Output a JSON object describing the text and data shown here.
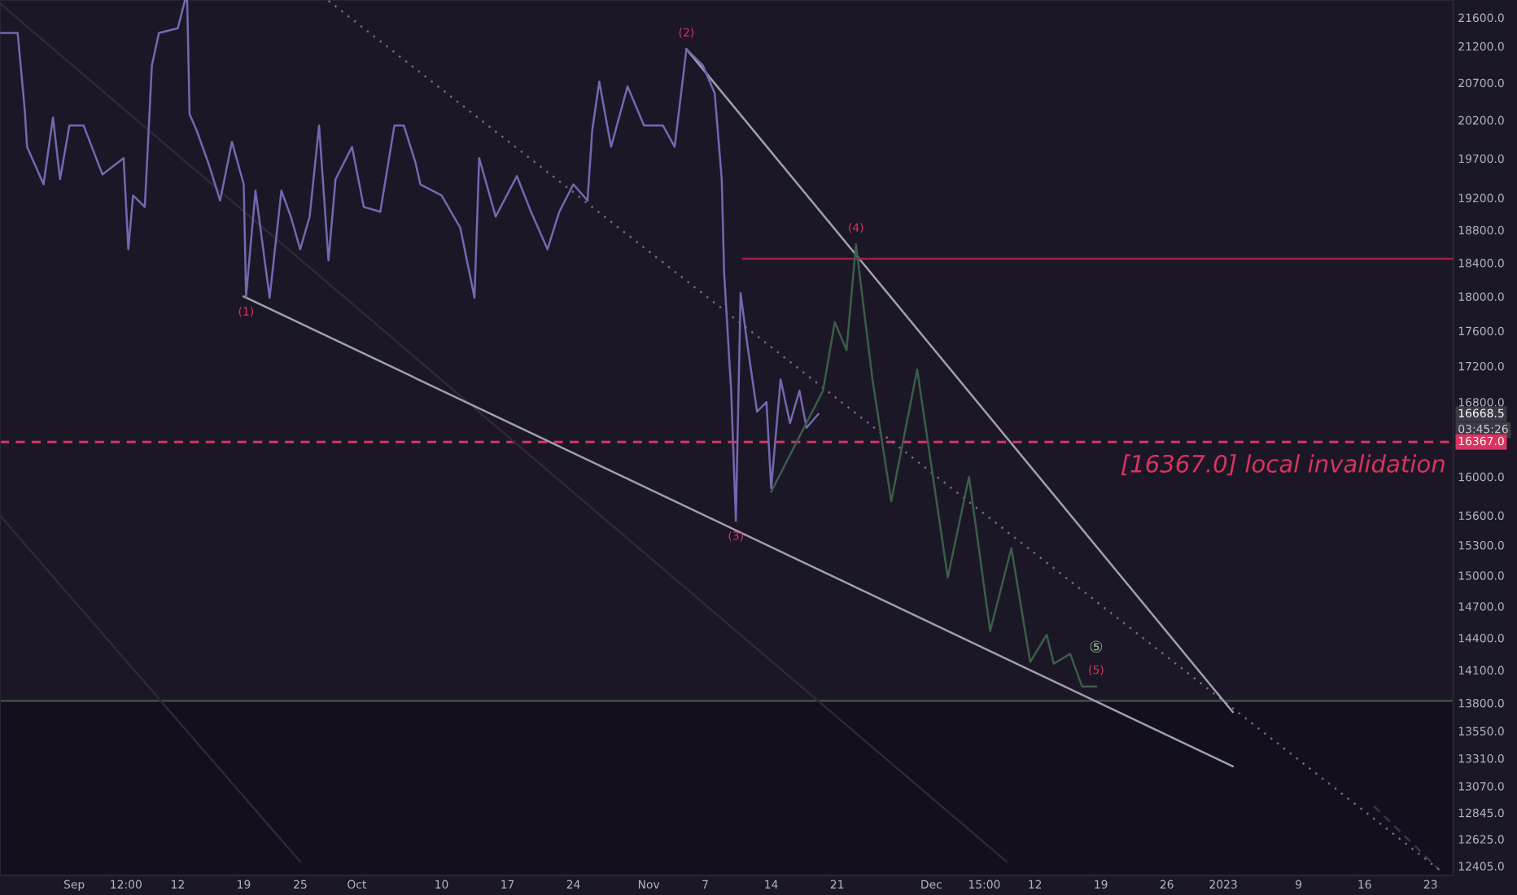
{
  "chart_data": {
    "type": "line",
    "xlim": [
      "2022-08-24T03:00",
      "2023-01-25T10:00"
    ],
    "ylim": [
      12330,
      21850
    ],
    "log": true,
    "grid": false,
    "xticks": [
      {
        "value": "2022-09-01",
        "label": "Sep"
      },
      {
        "value": "2022-09-06T12:00",
        "label": "12:00"
      },
      {
        "value": "2022-09-12",
        "label": "12"
      },
      {
        "value": "2022-09-19",
        "label": "19"
      },
      {
        "value": "2022-09-25",
        "label": "25"
      },
      {
        "value": "2022-10-01",
        "label": "Oct"
      },
      {
        "value": "2022-10-10",
        "label": "10"
      },
      {
        "value": "2022-10-17",
        "label": "17"
      },
      {
        "value": "2022-10-24",
        "label": "24"
      },
      {
        "value": "2022-11-01",
        "label": "Nov"
      },
      {
        "value": "2022-11-07",
        "label": "7"
      },
      {
        "value": "2022-11-14",
        "label": "14"
      },
      {
        "value": "2022-11-21",
        "label": "21"
      },
      {
        "value": "2022-12-01",
        "label": "Dec"
      },
      {
        "value": "2022-12-06T15:00",
        "label": "15:00"
      },
      {
        "value": "2022-12-12",
        "label": "12"
      },
      {
        "value": "2022-12-19",
        "label": "19"
      },
      {
        "value": "2022-12-26",
        "label": "26"
      },
      {
        "value": "2023-01-01",
        "label": "2023"
      },
      {
        "value": "2023-01-09",
        "label": "9"
      },
      {
        "value": "2023-01-16",
        "label": "16"
      },
      {
        "value": "2023-01-23",
        "label": "23"
      }
    ],
    "yticks": [
      {
        "value": 21600,
        "label": "21600.0"
      },
      {
        "value": 21200,
        "label": "21200.0"
      },
      {
        "value": 20700,
        "label": "20700.0"
      },
      {
        "value": 20200,
        "label": "20200.0"
      },
      {
        "value": 19700,
        "label": "19700.0"
      },
      {
        "value": 19200,
        "label": "19200.0"
      },
      {
        "value": 18800,
        "label": "18800.0"
      },
      {
        "value": 18400,
        "label": "18400.0"
      },
      {
        "value": 18000,
        "label": "18000.0"
      },
      {
        "value": 17600,
        "label": "17600.0"
      },
      {
        "value": 17200,
        "label": "17200.0"
      },
      {
        "value": 16800,
        "label": "16800.0"
      },
      {
        "value": 16000,
        "label": "16000.0"
      },
      {
        "value": 15600,
        "label": "15600.0"
      },
      {
        "value": 15300,
        "label": "15300.0"
      },
      {
        "value": 15000,
        "label": "15000.0"
      },
      {
        "value": 14700,
        "label": "14700.0"
      },
      {
        "value": 14400,
        "label": "14400.0"
      },
      {
        "value": 14100,
        "label": "14100.0"
      },
      {
        "value": 13800,
        "label": "13800.0"
      },
      {
        "value": 13550,
        "label": "13550.0"
      },
      {
        "value": 13310,
        "label": "13310.0"
      },
      {
        "value": 13070,
        "label": "13070.0"
      },
      {
        "value": 12845,
        "label": "12845.0"
      },
      {
        "value": 12625,
        "label": "12625.0"
      },
      {
        "value": 12405,
        "label": "12405.0"
      }
    ],
    "bands": [
      {
        "axis": "y",
        "from": 12330,
        "to": 13820,
        "color": "#140f1c"
      }
    ],
    "ref_lines": [
      {
        "axis": "y",
        "value": 13820,
        "color": "#3c4a44",
        "line_style": "solid"
      },
      {
        "axis": "y",
        "value": 16367,
        "label": "[16367.0] local invalidation",
        "color": "#d8345f",
        "line_style": "dashed"
      }
    ],
    "series": [
      {
        "color": "#2e2838",
        "line_style": "solid",
        "x": [
          "2022-08-24T03:00",
          "2022-12-09"
        ],
        "values": [
          21800,
          12440
        ]
      },
      {
        "color": "#2e2838",
        "line_style": "solid",
        "x": [
          "2022-08-24T03:00",
          "2022-09-25"
        ],
        "values": [
          15600,
          12440
        ]
      },
      {
        "color": "#3a3448",
        "line_style": "dashed",
        "x": [
          "2023-01-17",
          "2023-01-24"
        ],
        "values": [
          12900,
          12370
        ]
      },
      {
        "color": "#6e6a82",
        "line_style": "dotted",
        "x": [
          "2022-09-28",
          "2023-01-24"
        ],
        "values": [
          21840,
          12370
        ]
      },
      {
        "color": "#a09eb0",
        "line_style": "solid",
        "x": [
          "2022-09-19",
          "2023-01-02"
        ],
        "values": [
          18000,
          13240
        ]
      },
      {
        "color": "#a09eb0",
        "line_style": "solid",
        "x": [
          "2022-11-05",
          "2023-01-02"
        ],
        "values": [
          21160,
          13720
        ]
      },
      {
        "color": "#9c1f4a",
        "line_style": "solid",
        "x": [
          "2022-11-11",
          "2023-01-25T10:00"
        ],
        "values": [
          18450,
          18450
        ]
      },
      {
        "color": "#7468b0",
        "line_style": "solid",
        "x": [
          "2022-08-24T06:00",
          "2022-08-26",
          "2022-08-26T18:00",
          "2022-08-27",
          "2022-08-28T18:00",
          "2022-08-29T18:00",
          "2022-08-30T12:00",
          "2022-08-31T12:00",
          "2022-09-02",
          "2022-09-04",
          "2022-09-06T06:00",
          "2022-09-06T18:00",
          "2022-09-07T06:00",
          "2022-09-08T12:00",
          "2022-09-09T06:00",
          "2022-09-10",
          "2022-09-12",
          "2022-09-12T18:00",
          "2022-09-13",
          "2022-09-13T06:00",
          "2022-09-14",
          "2022-09-15T06:00",
          "2022-09-16T12:00",
          "2022-09-17T18:00",
          "2022-09-19",
          "2022-09-19T06:00",
          "2022-09-20T06:00",
          "2022-09-21T18:00",
          "2022-09-23",
          "2022-09-24",
          "2022-09-25",
          "2022-09-26",
          "2022-09-27",
          "2022-09-28",
          "2022-09-28T18:00",
          "2022-09-30T12:00",
          "2022-10-01T18:00",
          "2022-10-03T12:00",
          "2022-10-05",
          "2022-10-06",
          "2022-10-07T06:00",
          "2022-10-07T18:00",
          "2022-10-10",
          "2022-10-12",
          "2022-10-13T12:00",
          "2022-10-14",
          "2022-10-15T18:00",
          "2022-10-18",
          "2022-10-19T12:00",
          "2022-10-21T06:00",
          "2022-10-22T12:00",
          "2022-10-24",
          "2022-10-25T12:00",
          "2022-10-26",
          "2022-10-26T18:00",
          "2022-10-28",
          "2022-10-29T18:00",
          "2022-10-31T12:00",
          "2022-11-02T12:00",
          "2022-11-03T18:00",
          "2022-11-05",
          "2022-11-06T18:00",
          "2022-11-08",
          "2022-11-08T18:00",
          "2022-11-09",
          "2022-11-09T18:00",
          "2022-11-10T06:00",
          "2022-11-10T18:00",
          "2022-11-11T12:00",
          "2022-11-12T12:00",
          "2022-11-13T12:00",
          "2022-11-14",
          "2022-11-15",
          "2022-11-16",
          "2022-11-17",
          "2022-11-17T18:00",
          "2022-11-19"
        ],
        "values": [
          21385,
          21385,
          20340,
          19850,
          19370,
          20235,
          19435,
          20130,
          20130,
          19495,
          19705,
          18565,
          19230,
          19085,
          20935,
          21385,
          21450,
          21840,
          21840,
          20280,
          20065,
          19640,
          19165,
          19915,
          19370,
          18000,
          19290,
          17985,
          19290,
          18965,
          18565,
          18965,
          20130,
          18430,
          19435,
          19850,
          19085,
          19025,
          20130,
          20130,
          19640,
          19370,
          19230,
          18825,
          17985,
          19705,
          18965,
          19475,
          19025,
          18565,
          19025,
          19370,
          19165,
          20065,
          20715,
          19850,
          20650,
          20130,
          20130,
          19850,
          21160,
          20935,
          20560,
          19435,
          18290,
          16925,
          15545,
          18040,
          17420,
          16695,
          16800,
          15880,
          17050,
          16570,
          16925,
          16520,
          16668.5
        ]
      },
      {
        "color": "#3a5e48",
        "line_style": "solid",
        "x": [
          "2022-11-14",
          "2022-11-19T12:00",
          "2022-11-20T18:00",
          "2022-11-22",
          "2022-11-23",
          "2022-11-24T18:00",
          "2022-11-26T18:00",
          "2022-11-29T12:00",
          "2022-12-02T18:00",
          "2022-12-05",
          "2022-12-07T06:00",
          "2022-12-09T12:00",
          "2022-12-11T12:00",
          "2022-12-13T06:00",
          "2022-12-14",
          "2022-12-15T18:00",
          "2022-12-17",
          "2022-12-18T12:00"
        ],
        "values": [
          15845,
          16925,
          17700,
          17380,
          18625,
          17050,
          15745,
          17160,
          14980,
          16000,
          14465,
          15270,
          14175,
          14430,
          14160,
          14250,
          13950,
          13950
        ]
      }
    ],
    "annotations": [
      {
        "text": "(1)",
        "x": "2022-09-19T06:00",
        "y": 18000
      },
      {
        "text": "(2)",
        "x": "2022-11-05",
        "y": 21160
      },
      {
        "text": "(3)",
        "x": "2022-11-10T06:00",
        "y": 15545
      },
      {
        "text": "(4)",
        "x": "2022-11-23",
        "y": 18625
      },
      {
        "text": "(5)",
        "x": "2022-12-18T12:00",
        "y": 13950
      },
      {
        "text": "⑤",
        "x": "2022-12-18T12:00",
        "y": 13950
      },
      "16668.5",
      "03:45:26",
      {
        "text": "16367.0",
        "x": "2023-01-25T10:00",
        "y": 16367
      }
    ]
  }
}
